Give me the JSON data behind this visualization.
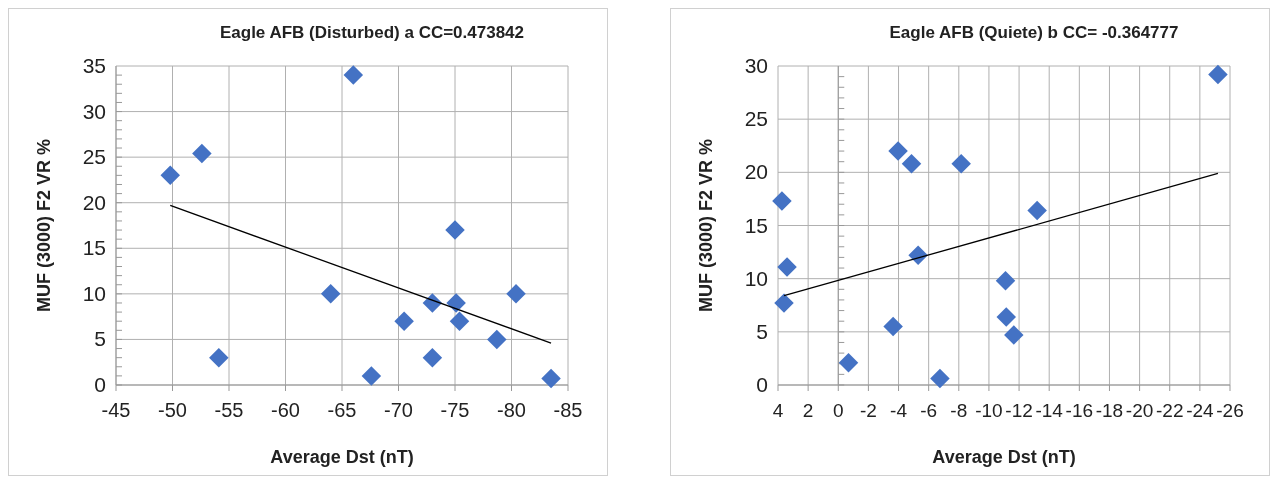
{
  "chart_data": [
    {
      "type": "scatter",
      "title": "Eagle AFB (Disturbed)  a   CC=0.473842",
      "xlabel": "Average Dst (nT)",
      "ylabel": "MUF (3000) F2  VR %",
      "xlim": [
        -45,
        -85
      ],
      "xticks": [
        -45,
        -50,
        -55,
        -60,
        -65,
        -70,
        -75,
        -80,
        -85
      ],
      "ylim": [
        0,
        35
      ],
      "yticks": [
        0,
        5,
        10,
        15,
        20,
        25,
        30,
        35
      ],
      "grid": true,
      "marker": "diamond",
      "series": [
        {
          "color": "#4472c4",
          "x": [
            -49.8,
            -52.6,
            -54.1,
            -66,
            -64,
            -67.6,
            -70.5,
            -73,
            -73,
            -75,
            -75.1,
            -75.4,
            -78.7,
            -80.4,
            -83.5
          ],
          "values": [
            23,
            25.4,
            3,
            34,
            10,
            1,
            7,
            9,
            3,
            17,
            9,
            7,
            5,
            10,
            0.7
          ]
        },
        {
          "type": "line",
          "color": "#000000",
          "marker": "none",
          "x": [
            -49.8,
            -83.5
          ],
          "values": [
            19.7,
            4.6
          ]
        }
      ]
    },
    {
      "type": "scatter",
      "title": "Eagle AFB (Quiete)  b   CC= -0.364777",
      "xlabel": "Average Dst (nT)",
      "ylabel": "MUF (3000) F2  VR %",
      "xlim": [
        4,
        -26
      ],
      "xticks": [
        4,
        2,
        0,
        -2,
        -4,
        -6,
        -8,
        -10,
        -12,
        -14,
        -16,
        -18,
        -20,
        -22,
        -24,
        -26
      ],
      "ylim": [
        0,
        30
      ],
      "yticks": [
        0,
        5,
        10,
        15,
        20,
        25,
        30
      ],
      "grid": true,
      "marker": "diamond",
      "series": [
        {
          "color": "#4472c4",
          "x": [
            3.74,
            3.4,
            3.6,
            -0.68,
            -3.64,
            -3.97,
            -4.86,
            -5.3,
            -6.75,
            -8.16,
            -11.1,
            -11.15,
            -11.65,
            -13.2,
            -25.2
          ],
          "values": [
            17.3,
            11.1,
            7.7,
            2.1,
            5.5,
            22,
            20.8,
            12.2,
            0.6,
            20.8,
            9.8,
            6.4,
            4.7,
            16.4,
            29.2
          ]
        },
        {
          "type": "line",
          "color": "#000000",
          "marker": "none",
          "x": [
            3.6,
            -25.2
          ],
          "values": [
            8.4,
            19.9
          ]
        }
      ]
    }
  ]
}
